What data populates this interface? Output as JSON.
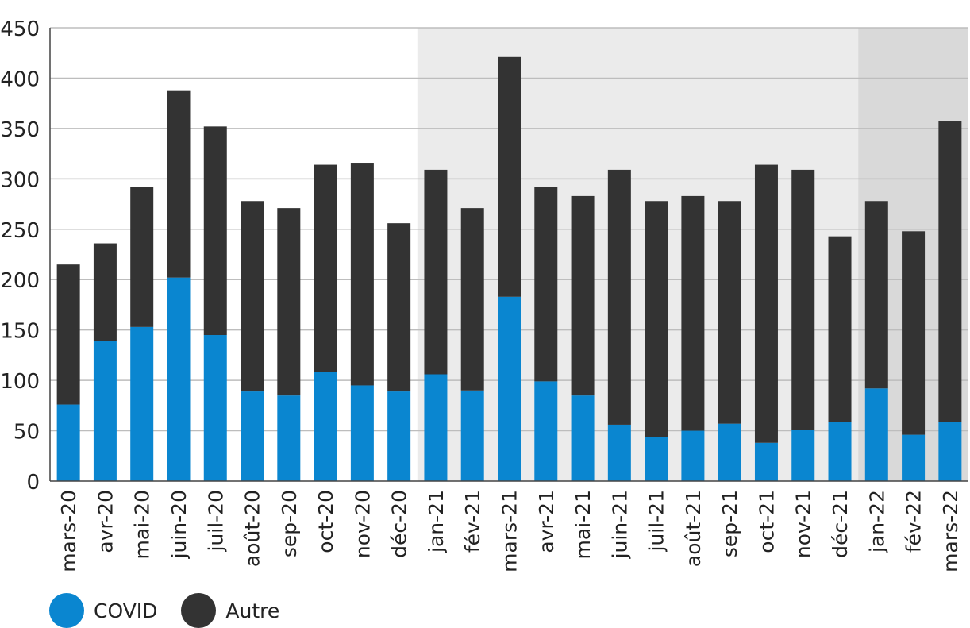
{
  "chart_data": {
    "type": "bar",
    "stacked": true,
    "categories": [
      "mars-20",
      "avr-20",
      "mai-20",
      "juin-20",
      "juil-20",
      "août-20",
      "sep-20",
      "oct-20",
      "nov-20",
      "déc-20",
      "jan-21",
      "fév-21",
      "mars-21",
      "avr-21",
      "mai-21",
      "juin-21",
      "juil-21",
      "août-21",
      "sep-21",
      "oct-21",
      "nov-21",
      "déc-21",
      "jan-22",
      "fév-22",
      "mars-22"
    ],
    "series": [
      {
        "name": "COVID",
        "color": "#0a86d0",
        "values": [
          76,
          139,
          153,
          202,
          145,
          89,
          85,
          108,
          95,
          89,
          106,
          90,
          183,
          99,
          85,
          56,
          44,
          50,
          57,
          38,
          51,
          59,
          92,
          46,
          59
        ]
      },
      {
        "name": "Autre",
        "color": "#333333",
        "values": [
          139,
          97,
          139,
          186,
          207,
          189,
          186,
          206,
          221,
          167,
          203,
          181,
          238,
          193,
          198,
          253,
          234,
          233,
          221,
          276,
          258,
          184,
          186,
          202,
          298
        ]
      }
    ],
    "ylim": [
      0,
      450
    ],
    "yticks": [
      "0",
      "50",
      "100",
      "150",
      "200",
      "250",
      "300",
      "350",
      "400",
      "450"
    ],
    "grid": true,
    "shaded_periods": [
      {
        "from": "jan-21",
        "to": "déc-21",
        "color": "#ebebeb"
      },
      {
        "from": "jan-22",
        "to": "mars-22",
        "color": "#d9d9d9"
      }
    ],
    "legend": {
      "position": "bottom-left",
      "entries": [
        "COVID",
        "Autre"
      ]
    }
  }
}
